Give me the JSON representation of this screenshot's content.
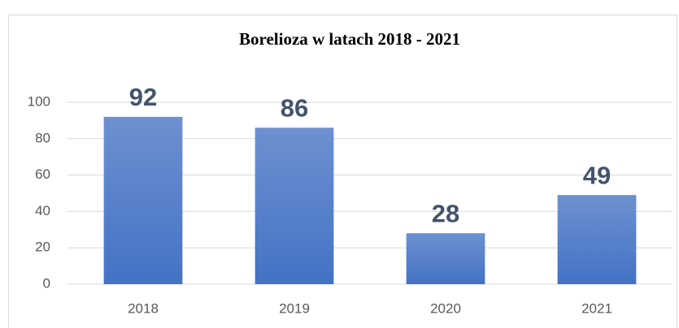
{
  "chart_data": {
    "type": "bar",
    "title": "Borelioza w latach 2018 - 2021",
    "categories": [
      "2018",
      "2019",
      "2020",
      "2021"
    ],
    "values": [
      92,
      86,
      28,
      49
    ],
    "color": "#4472c4",
    "ylim": [
      0,
      100
    ],
    "yticks": [
      0,
      20,
      40,
      60,
      80,
      100
    ],
    "grid": true
  }
}
